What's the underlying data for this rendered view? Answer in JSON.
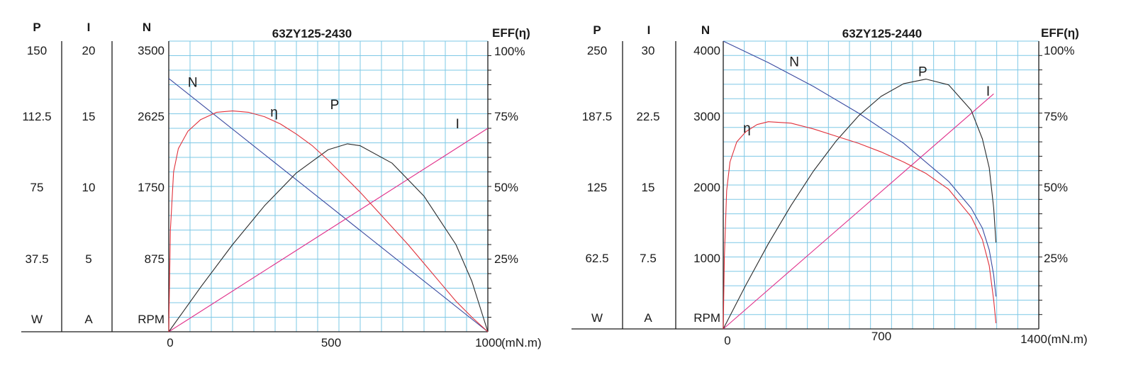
{
  "chart_data": [
    {
      "type": "line",
      "title": "63ZY125-2430",
      "x_tick_labels": [
        "0",
        "500",
        "1000"
      ],
      "x_unit": "(mN.m)",
      "xlim": [
        0,
        1000
      ],
      "left_axes": [
        {
          "header": "P",
          "unit": "W",
          "ticks": [
            "150",
            "112.5",
            "75",
            "37.5"
          ]
        },
        {
          "header": "I",
          "unit": "A",
          "ticks": [
            "20",
            "15",
            "10",
            "5"
          ]
        },
        {
          "header": "N",
          "unit": "RPM",
          "ticks": [
            "3500",
            "2625",
            "1750",
            "875"
          ]
        }
      ],
      "right_axis": {
        "header": "EFF(η)",
        "ticks": [
          "100%",
          "75%",
          "50%",
          "25%"
        ]
      },
      "ylim": {
        "P": [
          0,
          150
        ],
        "I": [
          0,
          20
        ],
        "N": [
          0,
          3500
        ],
        "EFF": [
          0,
          100
        ]
      },
      "grid": true,
      "colors": {
        "N": "#3a4aa0",
        "I": "#e0308a",
        "eta": "#e0303a",
        "P": "#2a2a2a",
        "grid": "#7ec8e6"
      },
      "series": [
        {
          "name": "N",
          "label_at": [
            75,
            2950
          ],
          "x": [
            0,
            1000
          ],
          "y": [
            3050,
            0
          ]
        },
        {
          "name": "I",
          "label_at": [
            905,
            2450
          ],
          "x": [
            0,
            1000
          ],
          "y": [
            0,
            14
          ]
        },
        {
          "name": "P",
          "label_at": [
            520,
            2680
          ],
          "x": [
            0,
            100,
            200,
            300,
            400,
            500,
            560,
            600,
            700,
            800,
            900,
            950,
            1000
          ],
          "y": [
            0,
            23,
            45,
            65,
            82,
            94,
            97,
            96,
            87,
            70,
            45,
            26,
            0
          ]
        },
        {
          "name": "η",
          "label_at": [
            330,
            2590
          ],
          "x": [
            0,
            5,
            15,
            30,
            60,
            100,
            150,
            200,
            250,
            300,
            350,
            400,
            450,
            500,
            550,
            600,
            650,
            700,
            750,
            800,
            850,
            900,
            950,
            1000
          ],
          "y": [
            0,
            35,
            55,
            63,
            69,
            73,
            75.5,
            76,
            75.5,
            74,
            71.5,
            68,
            64,
            59,
            53.5,
            48,
            42,
            36,
            30,
            23.5,
            17,
            10.5,
            5,
            0
          ]
        }
      ]
    },
    {
      "type": "line",
      "title": "63ZY125-2440",
      "x_tick_labels": [
        "0",
        "700",
        "1400"
      ],
      "x_unit": "(mN.m)",
      "xlim": [
        0,
        1400
      ],
      "left_axes": [
        {
          "header": "P",
          "unit": "W",
          "ticks": [
            "250",
            "187.5",
            "125",
            "62.5"
          ]
        },
        {
          "header": "I",
          "unit": "A",
          "ticks": [
            "30",
            "22.5",
            "15",
            "7.5"
          ]
        },
        {
          "header": "N",
          "unit": "RPM",
          "ticks": [
            "4000",
            "3000",
            "2000",
            "1000"
          ]
        }
      ],
      "right_axis": {
        "header": "EFF(η)",
        "ticks": [
          "100%",
          "75%",
          "50%",
          "25%"
        ]
      },
      "ylim": {
        "P": [
          0,
          250
        ],
        "I": [
          0,
          30
        ],
        "N": [
          0,
          4000
        ],
        "EFF": [
          0,
          100
        ]
      },
      "grid": true,
      "colors": {
        "N": "#3a4aa0",
        "I": "#e0308a",
        "eta": "#e0303a",
        "P": "#2a2a2a",
        "grid": "#7ec8e6"
      },
      "series": [
        {
          "name": "N",
          "label_at": [
            315,
            3650
          ],
          "x": [
            0,
            200,
            400,
            600,
            800,
            1000,
            1100,
            1150,
            1180,
            1200,
            1210
          ],
          "y": [
            4000,
            3700,
            3370,
            3000,
            2580,
            2050,
            1680,
            1400,
            1100,
            750,
            450
          ]
        },
        {
          "name": "I",
          "label_at": [
            1175,
            3240
          ],
          "x": [
            0,
            1200
          ],
          "y": [
            0,
            24.5
          ]
        },
        {
          "name": "P",
          "label_at": [
            885,
            3510
          ],
          "x": [
            0,
            100,
            200,
            300,
            400,
            500,
            600,
            700,
            800,
            900,
            1000,
            1100,
            1150,
            1180,
            1200,
            1210
          ],
          "y": [
            0,
            38,
            74,
            107,
            137,
            163,
            185,
            202,
            213,
            217,
            212,
            190,
            165,
            140,
            105,
            75
          ]
        },
        {
          "name": "η",
          "label_at": [
            105,
            2730
          ],
          "x": [
            0,
            5,
            15,
            30,
            60,
            100,
            150,
            200,
            300,
            400,
            500,
            600,
            700,
            800,
            900,
            1000,
            1100,
            1150,
            1180,
            1200,
            1210
          ],
          "y": [
            0,
            25,
            48,
            58,
            65,
            68.5,
            71,
            72,
            71.5,
            69.5,
            67,
            64.5,
            61.5,
            58,
            54,
            48.5,
            39,
            31,
            22,
            10,
            2
          ]
        }
      ]
    }
  ]
}
